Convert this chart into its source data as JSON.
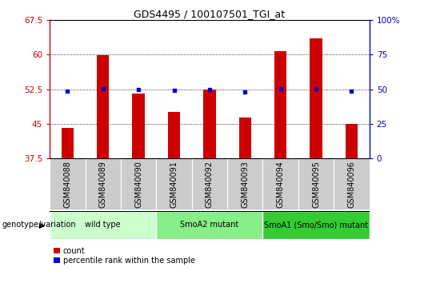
{
  "title": "GDS4495 / 100107501_TGI_at",
  "samples": [
    "GSM840088",
    "GSM840089",
    "GSM840090",
    "GSM840091",
    "GSM840092",
    "GSM840093",
    "GSM840094",
    "GSM840095",
    "GSM840096"
  ],
  "count_values": [
    44.2,
    59.9,
    51.5,
    47.5,
    52.5,
    46.3,
    60.7,
    63.5,
    45.0
  ],
  "percentile_values": [
    48.5,
    50.5,
    49.5,
    49.0,
    50.0,
    48.0,
    50.5,
    50.5,
    48.5
  ],
  "y_min": 37.5,
  "y_max": 67.5,
  "y_ticks": [
    37.5,
    45.0,
    52.5,
    60.0,
    67.5
  ],
  "y_tick_labels": [
    "37.5",
    "45",
    "52.5",
    "60",
    "67.5"
  ],
  "right_y_ticks": [
    0,
    25,
    50,
    75,
    100
  ],
  "right_y_labels": [
    "0",
    "25",
    "50",
    "75",
    "100%"
  ],
  "bar_color": "#cc0000",
  "dot_color": "#0000cc",
  "bar_width": 0.35,
  "groups": [
    {
      "label": "wild type",
      "start": 0,
      "end": 2,
      "color": "#ccffcc"
    },
    {
      "label": "SmoA2 mutant",
      "start": 3,
      "end": 5,
      "color": "#88ee88"
    },
    {
      "label": "SmoA1 (Smo/Smo) mutant",
      "start": 6,
      "end": 8,
      "color": "#33cc33"
    }
  ],
  "legend_count_color": "#cc0000",
  "legend_pct_color": "#0000cc",
  "legend_count_label": "count",
  "legend_pct_label": "percentile rank within the sample",
  "genotype_label": "genotype/variation",
  "left_axis_color": "#cc0000",
  "right_axis_color": "#0000cc",
  "bg_color": "#ffffff",
  "sample_band_color": "#cccccc",
  "title_fontsize": 9,
  "tick_fontsize": 7.5,
  "label_fontsize": 7
}
